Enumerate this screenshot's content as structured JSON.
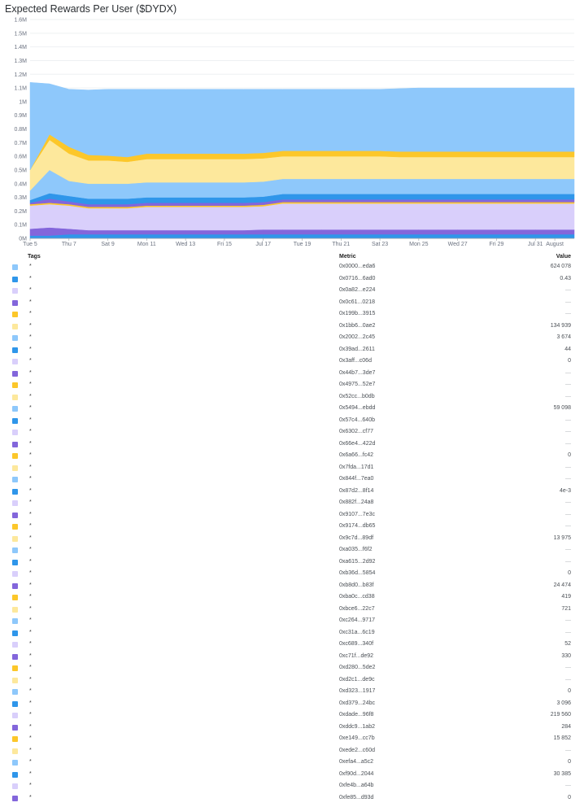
{
  "title": "Expected Rewards Per User ($DYDX)",
  "colors": {
    "light_blue": "#8ec8fb",
    "blue": "#2f96ea",
    "lavender": "#d9cffb",
    "purple": "#8366db",
    "yellow": "#fcc72a",
    "cream": "#fde89c"
  },
  "chart_data": {
    "type": "area",
    "stacked": true,
    "title": "Expected Rewards Per User ($DYDX)",
    "ylim": [
      0,
      1600000
    ],
    "y_ticks": [
      "1.6M",
      "1.5M",
      "1.4M",
      "1.3M",
      "1.2M",
      "1.1M",
      "1M",
      "0.9M",
      "0.8M",
      "0.7M",
      "0.6M",
      "0.5M",
      "0.4M",
      "0.3M",
      "0.2M",
      "0.1M",
      "0M"
    ],
    "x_ticks": [
      "Tue 5",
      "Thu 7",
      "Sat 9",
      "Mon 11",
      "Wed 13",
      "Fri 15",
      "Jul 17",
      "Tue 19",
      "Thu 21",
      "Sat 23",
      "Mon 25",
      "Wed 27",
      "Fri 29",
      "Jul 31",
      "August"
    ],
    "x": [
      "Jul 5",
      "Jul 6",
      "Jul 7",
      "Jul 8",
      "Jul 9",
      "Jul 10",
      "Jul 11",
      "Jul 12",
      "Jul 13",
      "Jul 14",
      "Jul 15",
      "Jul 16",
      "Jul 17",
      "Jul 18",
      "Jul 19",
      "Jul 20",
      "Jul 21",
      "Jul 22",
      "Jul 23",
      "Jul 24",
      "Jul 25",
      "Jul 26",
      "Jul 27",
      "Jul 28",
      "Jul 29",
      "Jul 30",
      "Jul 31",
      "Aug 1",
      "Aug 2"
    ],
    "series": [
      {
        "color": "#2f96ea",
        "values": [
          20000,
          20000,
          30000,
          30000,
          30000,
          30000,
          30000,
          30000,
          30000,
          30000,
          30000,
          30000,
          30000,
          30000,
          30000,
          30000,
          30000,
          30000,
          30000,
          30000,
          30000,
          30000,
          30000,
          30000,
          30000,
          30000,
          30000,
          30000,
          30000
        ]
      },
      {
        "color": "#8366db",
        "values": [
          50000,
          60000,
          40000,
          30000,
          30000,
          30000,
          30000,
          30000,
          30000,
          30000,
          30000,
          30000,
          35000,
          35000,
          35000,
          35000,
          35000,
          35000,
          35000,
          35000,
          35000,
          35000,
          35000,
          35000,
          35000,
          35000,
          35000,
          35000,
          35000
        ]
      },
      {
        "color": "#d9cffb",
        "values": [
          170000,
          170000,
          170000,
          160000,
          160000,
          160000,
          170000,
          170000,
          170000,
          170000,
          170000,
          170000,
          170000,
          190000,
          190000,
          190000,
          190000,
          190000,
          190000,
          190000,
          190000,
          190000,
          190000,
          190000,
          190000,
          190000,
          190000,
          190000,
          190000
        ]
      },
      {
        "color": "#fcc72a",
        "values": [
          10000,
          10000,
          10000,
          10000,
          10000,
          10000,
          10000,
          10000,
          10000,
          10000,
          10000,
          10000,
          10000,
          10000,
          10000,
          10000,
          10000,
          10000,
          10000,
          10000,
          10000,
          10000,
          10000,
          10000,
          10000,
          10000,
          10000,
          10000,
          10000
        ]
      },
      {
        "color": "#8366db",
        "values": [
          10000,
          30000,
          20000,
          20000,
          20000,
          20000,
          20000,
          20000,
          20000,
          20000,
          20000,
          20000,
          20000,
          20000,
          20000,
          20000,
          20000,
          20000,
          20000,
          20000,
          20000,
          20000,
          20000,
          20000,
          20000,
          20000,
          20000,
          20000,
          20000
        ]
      },
      {
        "color": "#2f96ea",
        "values": [
          20000,
          40000,
          40000,
          40000,
          40000,
          40000,
          40000,
          40000,
          40000,
          40000,
          40000,
          40000,
          40000,
          40000,
          40000,
          40000,
          40000,
          40000,
          40000,
          40000,
          40000,
          40000,
          40000,
          40000,
          40000,
          40000,
          40000,
          40000,
          40000
        ]
      },
      {
        "color": "#8ec8fb",
        "values": [
          70000,
          170000,
          110000,
          110000,
          110000,
          110000,
          110000,
          110000,
          110000,
          110000,
          110000,
          110000,
          110000,
          110000,
          110000,
          110000,
          110000,
          110000,
          110000,
          110000,
          110000,
          110000,
          110000,
          110000,
          110000,
          110000,
          110000,
          110000,
          110000
        ]
      },
      {
        "color": "#fde89c",
        "values": [
          150000,
          220000,
          200000,
          170000,
          170000,
          160000,
          170000,
          170000,
          170000,
          170000,
          170000,
          170000,
          170000,
          165000,
          165000,
          165000,
          165000,
          165000,
          165000,
          160000,
          160000,
          160000,
          160000,
          160000,
          160000,
          160000,
          160000,
          160000,
          160000
        ]
      },
      {
        "color": "#fcc72a",
        "values": [
          0,
          40000,
          50000,
          40000,
          35000,
          35000,
          40000,
          40000,
          40000,
          40000,
          40000,
          40000,
          40000,
          40000,
          40000,
          40000,
          40000,
          40000,
          40000,
          40000,
          40000,
          40000,
          40000,
          40000,
          40000,
          40000,
          40000,
          40000,
          40000
        ]
      },
      {
        "color": "#8ec8fb",
        "values": [
          640000,
          370000,
          420000,
          475000,
          485000,
          495000,
          470000,
          470000,
          470000,
          470000,
          470000,
          470000,
          465000,
          450000,
          450000,
          450000,
          450000,
          450000,
          450000,
          460000,
          465000,
          465000,
          465000,
          465000,
          465000,
          465000,
          465000,
          465000,
          465000
        ]
      }
    ]
  },
  "table": {
    "headers": {
      "tags": "Tags",
      "metric": "Metric",
      "value": "Value"
    },
    "rows": [
      {
        "color": "#8ec8fb",
        "tag": "*",
        "metric": "0x0000...eda6",
        "value": "624 078"
      },
      {
        "color": "#2f96ea",
        "tag": "*",
        "metric": "0x0716...6ad0",
        "value": "0.43"
      },
      {
        "color": "#d9cffb",
        "tag": "*",
        "metric": "0x0a82...e224",
        "value": "—"
      },
      {
        "color": "#8366db",
        "tag": "*",
        "metric": "0x0c61...0218",
        "value": "—"
      },
      {
        "color": "#fcc72a",
        "tag": "*",
        "metric": "0x199b...3915",
        "value": "—"
      },
      {
        "color": "#fde89c",
        "tag": "*",
        "metric": "0x1bb6...0ae2",
        "value": "134 939"
      },
      {
        "color": "#8ec8fb",
        "tag": "*",
        "metric": "0x2002...2c45",
        "value": "3 674"
      },
      {
        "color": "#2f96ea",
        "tag": "*",
        "metric": "0x39ad...2611",
        "value": "44"
      },
      {
        "color": "#d9cffb",
        "tag": "*",
        "metric": "0x3aff...c06d",
        "value": "0"
      },
      {
        "color": "#8366db",
        "tag": "*",
        "metric": "0x44b7...3de7",
        "value": "—"
      },
      {
        "color": "#fcc72a",
        "tag": "*",
        "metric": "0x4975...52e7",
        "value": "—"
      },
      {
        "color": "#fde89c",
        "tag": "*",
        "metric": "0x52cc...b0db",
        "value": "—"
      },
      {
        "color": "#8ec8fb",
        "tag": "*",
        "metric": "0x5494...ebdd",
        "value": "59 098"
      },
      {
        "color": "#2f96ea",
        "tag": "*",
        "metric": "0x57c4...640b",
        "value": "—"
      },
      {
        "color": "#d9cffb",
        "tag": "*",
        "metric": "0x6302...cf77",
        "value": "—"
      },
      {
        "color": "#8366db",
        "tag": "*",
        "metric": "0x66e4...422d",
        "value": "—"
      },
      {
        "color": "#fcc72a",
        "tag": "*",
        "metric": "0x6a66...fc42",
        "value": "0"
      },
      {
        "color": "#fde89c",
        "tag": "*",
        "metric": "0x7fda...17d1",
        "value": "—"
      },
      {
        "color": "#8ec8fb",
        "tag": "*",
        "metric": "0x844f...7ea0",
        "value": "—"
      },
      {
        "color": "#2f96ea",
        "tag": "*",
        "metric": "0x87d2...8f14",
        "value": "4e-3"
      },
      {
        "color": "#d9cffb",
        "tag": "*",
        "metric": "0x882f...24a8",
        "value": "—"
      },
      {
        "color": "#8366db",
        "tag": "*",
        "metric": "0x9107...7e3c",
        "value": "—"
      },
      {
        "color": "#fcc72a",
        "tag": "*",
        "metric": "0x9174...db65",
        "value": "—"
      },
      {
        "color": "#fde89c",
        "tag": "*",
        "metric": "0x9c7d...89df",
        "value": "13 975"
      },
      {
        "color": "#8ec8fb",
        "tag": "*",
        "metric": "0xa035...f6f2",
        "value": "—"
      },
      {
        "color": "#2f96ea",
        "tag": "*",
        "metric": "0xa615...2d92",
        "value": "—"
      },
      {
        "color": "#d9cffb",
        "tag": "*",
        "metric": "0xb36d...5854",
        "value": "0"
      },
      {
        "color": "#8366db",
        "tag": "*",
        "metric": "0xb8d0...b83f",
        "value": "24 474"
      },
      {
        "color": "#fcc72a",
        "tag": "*",
        "metric": "0xba0c...cd38",
        "value": "419"
      },
      {
        "color": "#fde89c",
        "tag": "*",
        "metric": "0xbce6...22c7",
        "value": "721"
      },
      {
        "color": "#8ec8fb",
        "tag": "*",
        "metric": "0xc264...9717",
        "value": "—"
      },
      {
        "color": "#2f96ea",
        "tag": "*",
        "metric": "0xc31a...6c19",
        "value": "—"
      },
      {
        "color": "#d9cffb",
        "tag": "*",
        "metric": "0xc689...340f",
        "value": "52"
      },
      {
        "color": "#8366db",
        "tag": "*",
        "metric": "0xc71f...de92",
        "value": "330"
      },
      {
        "color": "#fcc72a",
        "tag": "*",
        "metric": "0xd280...5de2",
        "value": "—"
      },
      {
        "color": "#fde89c",
        "tag": "*",
        "metric": "0xd2c1...de9c",
        "value": "—"
      },
      {
        "color": "#8ec8fb",
        "tag": "*",
        "metric": "0xd323...1917",
        "value": "0"
      },
      {
        "color": "#2f96ea",
        "tag": "*",
        "metric": "0xd379...24bc",
        "value": "3 096"
      },
      {
        "color": "#d9cffb",
        "tag": "*",
        "metric": "0xdade...96f8",
        "value": "219 560"
      },
      {
        "color": "#8366db",
        "tag": "*",
        "metric": "0xddc9...1ab2",
        "value": "284"
      },
      {
        "color": "#fcc72a",
        "tag": "*",
        "metric": "0xe149...cc7b",
        "value": "15 852"
      },
      {
        "color": "#fde89c",
        "tag": "*",
        "metric": "0xede2...c60d",
        "value": "—"
      },
      {
        "color": "#8ec8fb",
        "tag": "*",
        "metric": "0xefa4...a5c2",
        "value": "0"
      },
      {
        "color": "#2f96ea",
        "tag": "*",
        "metric": "0xf90d...2044",
        "value": "30 385"
      },
      {
        "color": "#d9cffb",
        "tag": "*",
        "metric": "0xfe4b...a64b",
        "value": "—"
      },
      {
        "color": "#8366db",
        "tag": "*",
        "metric": "0xfe85...d93d",
        "value": "0"
      }
    ]
  }
}
